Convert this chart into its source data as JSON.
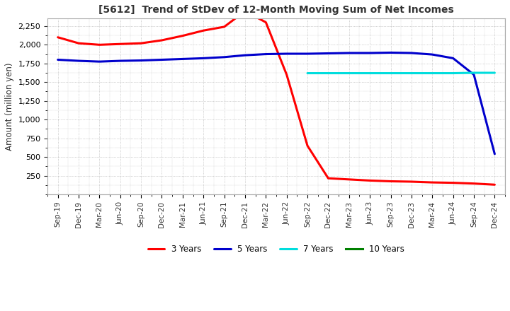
{
  "title": "[5612]  Trend of StDev of 12-Month Moving Sum of Net Incomes",
  "ylabel": "Amount (million yen)",
  "ylim": [
    0,
    2350
  ],
  "yticks": [
    250,
    500,
    750,
    1000,
    1250,
    1500,
    1750,
    2000,
    2250
  ],
  "background_color": "#ffffff",
  "plot_bg_color": "#ffffff",
  "grid_color": "#aaaaaa",
  "series": {
    "3 Years": {
      "color": "#ff0000",
      "y": [
        2100,
        2020,
        2000,
        2010,
        2020,
        2060,
        2120,
        2190,
        2240,
        2450,
        2300,
        1600,
        650,
        215,
        200,
        185,
        175,
        170,
        160,
        155,
        145,
        130
      ]
    },
    "5 Years": {
      "color": "#0000cc",
      "y": [
        1800,
        1785,
        1775,
        1785,
        1790,
        1800,
        1810,
        1820,
        1835,
        1860,
        1875,
        1880,
        1880,
        1885,
        1890,
        1890,
        1895,
        1890,
        1870,
        1820,
        1600,
        540
      ]
    },
    "7 Years": {
      "color": "#00dddd",
      "y": [
        null,
        null,
        null,
        null,
        null,
        null,
        null,
        null,
        null,
        null,
        null,
        null,
        1620,
        1620,
        1620,
        1620,
        1620,
        1620,
        1620,
        1620,
        1625,
        1625
      ]
    },
    "10 Years": {
      "color": "#008000",
      "y": [
        null,
        null,
        null,
        null,
        null,
        null,
        null,
        null,
        null,
        null,
        null,
        null,
        null,
        null,
        null,
        null,
        null,
        null,
        null,
        null,
        null,
        null
      ]
    }
  },
  "xtick_labels": [
    "Sep-19",
    "Dec-19",
    "Mar-20",
    "Jun-20",
    "Sep-20",
    "Dec-20",
    "Mar-21",
    "Jun-21",
    "Sep-21",
    "Dec-21",
    "Mar-22",
    "Jun-22",
    "Sep-22",
    "Dec-22",
    "Mar-23",
    "Jun-23",
    "Sep-23",
    "Dec-23",
    "Mar-24",
    "Jun-24",
    "Sep-24",
    "Dec-24"
  ],
  "legend_order": [
    "3 Years",
    "5 Years",
    "7 Years",
    "10 Years"
  ],
  "line_width": 2.2
}
